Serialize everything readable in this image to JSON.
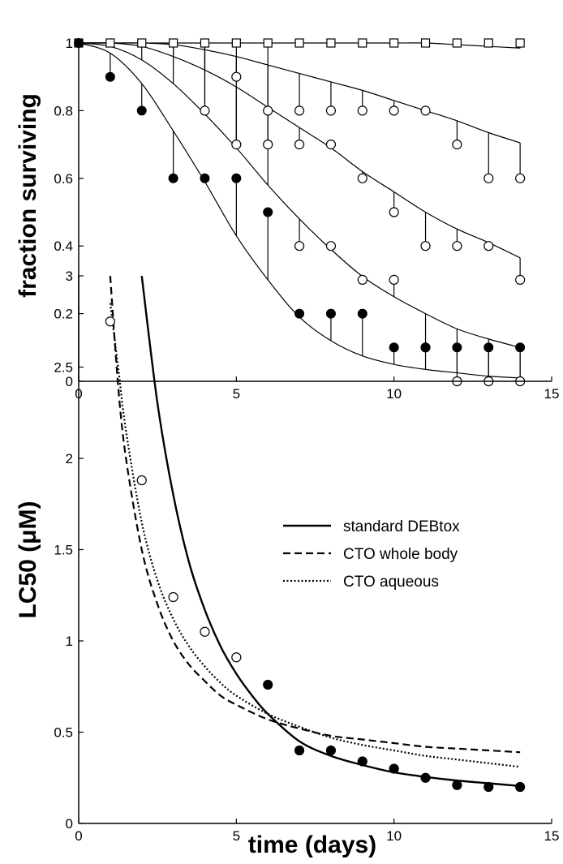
{
  "chart_data": [
    {
      "type": "scatter",
      "title": "",
      "xlabel": "",
      "ylabel": "fraction surviving",
      "xlim": [
        0,
        15
      ],
      "ylim": [
        0,
        1
      ],
      "xticks": [
        "0",
        "5",
        "10",
        "15"
      ],
      "yticks": [
        "0",
        "0.2",
        "0.4",
        "0.6",
        "0.8",
        "1"
      ],
      "grid": false,
      "series": [
        {
          "marker": "open-square",
          "x": [
            0,
            1,
            2,
            3,
            4,
            5,
            6,
            7,
            8,
            9,
            10,
            11,
            12,
            13,
            14
          ],
          "observed": [
            1,
            1,
            1,
            1,
            1,
            1,
            1,
            1,
            1,
            1,
            1,
            1,
            1,
            1,
            1
          ],
          "fitted": [
            1,
            1,
            1,
            1,
            1,
            1,
            1,
            1,
            1,
            1,
            1,
            1,
            0.995,
            0.99,
            0.985
          ]
        },
        {
          "marker": "open-circle",
          "x": [
            0,
            1,
            2,
            3,
            4,
            5,
            6,
            7,
            8,
            9,
            10,
            11,
            12,
            13,
            14
          ],
          "observed": [
            1,
            1,
            1,
            1,
            0.8,
            0.9,
            0.8,
            0.8,
            0.8,
            0.8,
            0.8,
            0.8,
            0.7,
            0.6,
            0.6
          ],
          "fitted": [
            1,
            1,
            1,
            0.995,
            0.98,
            0.96,
            0.935,
            0.91,
            0.885,
            0.86,
            0.83,
            0.8,
            0.77,
            0.735,
            0.705
          ]
        },
        {
          "marker": "open-circle",
          "x": [
            0,
            1,
            2,
            3,
            4,
            5,
            6,
            7,
            8,
            9,
            10,
            11,
            12,
            13,
            14
          ],
          "observed": [
            1,
            1,
            1,
            1,
            1,
            0.7,
            0.7,
            0.7,
            0.7,
            0.6,
            0.5,
            0.4,
            0.4,
            0.4,
            0.3
          ],
          "fitted": [
            1,
            1,
            0.99,
            0.96,
            0.92,
            0.87,
            0.81,
            0.75,
            0.69,
            0.62,
            0.56,
            0.5,
            0.45,
            0.41,
            0.365
          ]
        },
        {
          "marker": "open-circle",
          "x": [
            0,
            1,
            2,
            3,
            4,
            5,
            6,
            7,
            8,
            9,
            10,
            11,
            12,
            13,
            14
          ],
          "observed": [
            1,
            1,
            1,
            1,
            1,
            1,
            1,
            0.4,
            0.4,
            0.3,
            0.3,
            0.1,
            0,
            0,
            0
          ],
          "fitted": [
            1,
            0.99,
            0.95,
            0.88,
            0.79,
            0.69,
            0.58,
            0.48,
            0.39,
            0.31,
            0.25,
            0.2,
            0.155,
            0.125,
            0.1
          ]
        },
        {
          "marker": "filled-circle",
          "x": [
            0,
            1,
            2,
            3,
            4,
            5,
            6,
            7,
            8,
            9,
            10,
            11,
            12,
            13,
            14
          ],
          "observed": [
            1,
            0.9,
            0.8,
            0.6,
            0.6,
            0.6,
            0.5,
            0.2,
            0.2,
            0.2,
            0.1,
            0.1,
            0.1,
            0.1,
            0.1
          ],
          "fitted": [
            1,
            0.97,
            0.88,
            0.74,
            0.59,
            0.43,
            0.3,
            0.19,
            0.12,
            0.075,
            0.05,
            0.035,
            0.025,
            0.015,
            0.01
          ]
        }
      ]
    },
    {
      "type": "line",
      "title": "",
      "xlabel": "time (days)",
      "ylabel": "LC50 (μM)",
      "xlim": [
        0,
        15
      ],
      "ylim": [
        0,
        3
      ],
      "xticks": [
        "0",
        "5",
        "10",
        "15"
      ],
      "yticks": [
        "0",
        "0.5",
        "1",
        "1.5",
        "2",
        "2.5",
        "3"
      ],
      "grid": false,
      "legend_position": "top-right",
      "series": [
        {
          "name": "standard DEBtox",
          "style": "solid",
          "x": [
            2,
            2.5,
            3,
            3.5,
            4,
            4.5,
            5,
            5.5,
            6,
            7,
            8,
            9,
            10,
            11,
            12,
            13,
            14
          ],
          "y": [
            3,
            2.3,
            1.8,
            1.43,
            1.17,
            0.97,
            0.82,
            0.7,
            0.6,
            0.45,
            0.37,
            0.32,
            0.28,
            0.255,
            0.235,
            0.22,
            0.205
          ]
        },
        {
          "name": "CTO whole body",
          "style": "dashed",
          "x": [
            1,
            1.25,
            1.5,
            2,
            2.5,
            3,
            3.5,
            4,
            4.5,
            5,
            6,
            7,
            8,
            9,
            10,
            11,
            12,
            13,
            14
          ],
          "y": [
            3,
            2.4,
            2.0,
            1.5,
            1.2,
            1.0,
            0.87,
            0.78,
            0.7,
            0.65,
            0.57,
            0.52,
            0.48,
            0.46,
            0.44,
            0.42,
            0.41,
            0.4,
            0.39
          ]
        },
        {
          "name": "CTO aqueous",
          "style": "dotted",
          "x": [
            1,
            1.25,
            1.5,
            2,
            2.5,
            3,
            3.5,
            4,
            4.5,
            5,
            6,
            7,
            8,
            9,
            10,
            11,
            12,
            13,
            14
          ],
          "y": [
            2.85,
            2.5,
            2.15,
            1.65,
            1.33,
            1.12,
            0.97,
            0.86,
            0.77,
            0.7,
            0.6,
            0.53,
            0.47,
            0.43,
            0.4,
            0.37,
            0.35,
            0.33,
            0.31
          ]
        },
        {
          "name": "",
          "style": "open-circle-markers",
          "x": [
            1,
            2,
            3,
            4,
            5
          ],
          "y": [
            2.75,
            1.88,
            1.24,
            1.05,
            0.91
          ]
        },
        {
          "name": "",
          "style": "filled-circle-markers",
          "x": [
            6,
            7,
            8,
            9,
            10,
            11,
            12,
            13,
            14
          ],
          "y": [
            0.76,
            0.4,
            0.4,
            0.34,
            0.3,
            0.25,
            0.21,
            0.2,
            0.2
          ]
        }
      ]
    }
  ]
}
